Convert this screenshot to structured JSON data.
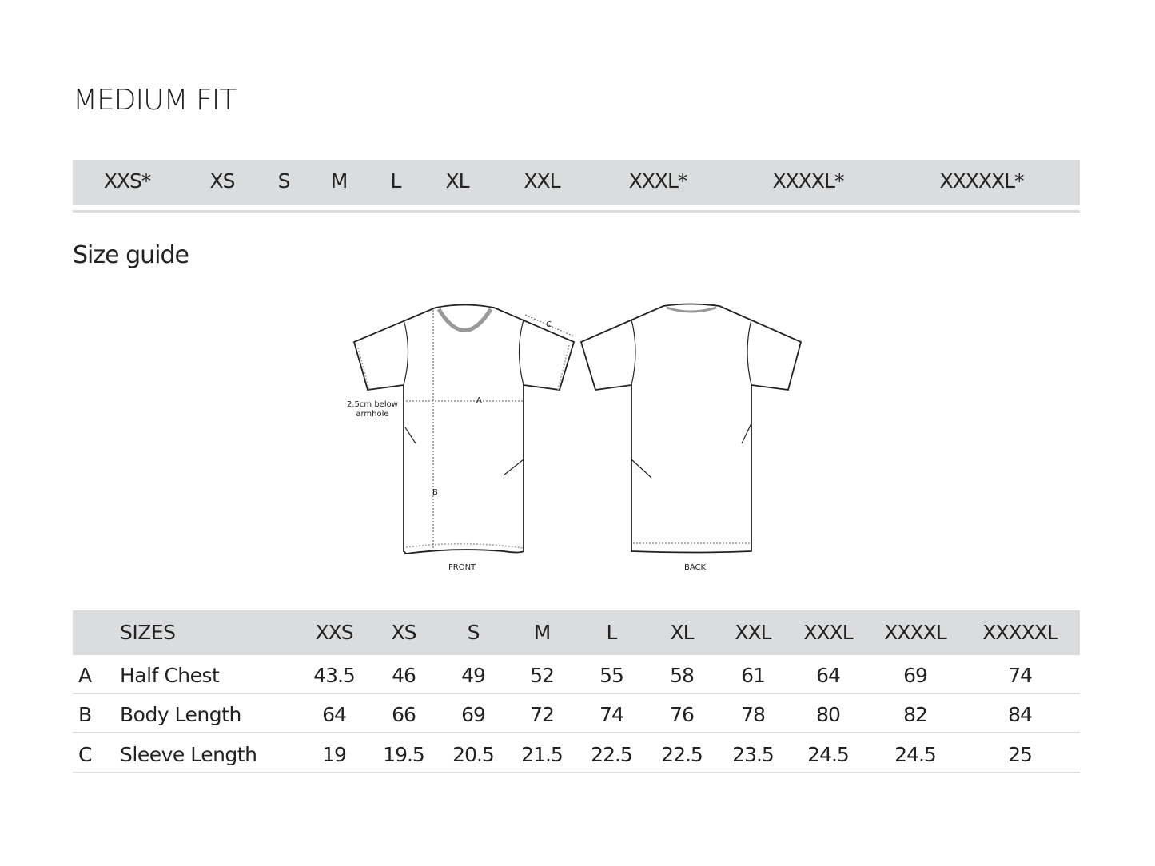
{
  "title": "MEDIUM FIT",
  "size_bar": [
    "XXS*",
    "XS",
    "S",
    "M",
    "L",
    "XL",
    "XXL",
    "XXXL*",
    "XXXXL*",
    "XXXXXL*"
  ],
  "subtitle": "Size guide",
  "diagram": {
    "front_label": "FRONT",
    "back_label": "BACK",
    "note_line1": "2.5cm below",
    "note_line2": "armhole",
    "a": "A",
    "b": "B",
    "c": "C"
  },
  "table": {
    "header": [
      "SIZES",
      "XXS",
      "XS",
      "S",
      "M",
      "L",
      "XL",
      "XXL",
      "XXXL",
      "XXXXL",
      "XXXXXL"
    ],
    "rows": [
      {
        "key": "A",
        "label": "Half Chest",
        "values": [
          "43.5",
          "46",
          "49",
          "52",
          "55",
          "58",
          "61",
          "64",
          "69",
          "74"
        ]
      },
      {
        "key": "B",
        "label": "Body Length",
        "values": [
          "64",
          "66",
          "69",
          "72",
          "74",
          "76",
          "78",
          "80",
          "82",
          "84"
        ]
      },
      {
        "key": "C",
        "label": "Sleeve Length",
        "values": [
          "19",
          "19.5",
          "20.5",
          "21.5",
          "22.5",
          "22.5",
          "23.5",
          "24.5",
          "24.5",
          "25"
        ]
      }
    ]
  }
}
